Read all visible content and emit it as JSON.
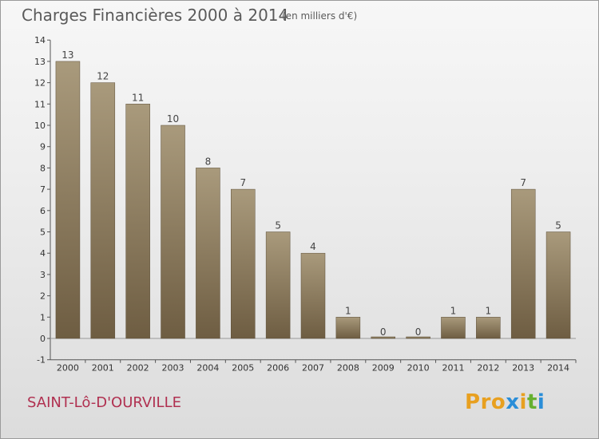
{
  "header": {
    "title": "Charges Financières 2000 à 2014",
    "unit": "(en milliers d'€)"
  },
  "footer": {
    "commune": "SAINT-Lô-D'OURVILLE",
    "logo": "Proxiti"
  },
  "colors": {
    "bar_top": "#a99a7c",
    "bar_bottom": "#6e5d42",
    "commune": "#b03050",
    "logo_letters": [
      "#e8a020",
      "#e8a020",
      "#e8a020",
      "#2a8ed8",
      "#e8a020",
      "#66b030",
      "#2a8ed8"
    ]
  },
  "chart_data": {
    "type": "bar",
    "title": "Charges Financières 2000 à 2014",
    "subtitle": "(en milliers d'€)",
    "categories": [
      "2000",
      "2001",
      "2002",
      "2003",
      "2004",
      "2005",
      "2006",
      "2007",
      "2008",
      "2009",
      "2010",
      "2011",
      "2012",
      "2013",
      "2014"
    ],
    "values": [
      13,
      12,
      11,
      10,
      8,
      7,
      5,
      4,
      1,
      0,
      0,
      1,
      1,
      7,
      5
    ],
    "ylim": [
      -1,
      14
    ],
    "yticks": [
      -1,
      0,
      1,
      2,
      3,
      4,
      5,
      6,
      7,
      8,
      9,
      10,
      11,
      12,
      13,
      14
    ],
    "grid": false
  }
}
